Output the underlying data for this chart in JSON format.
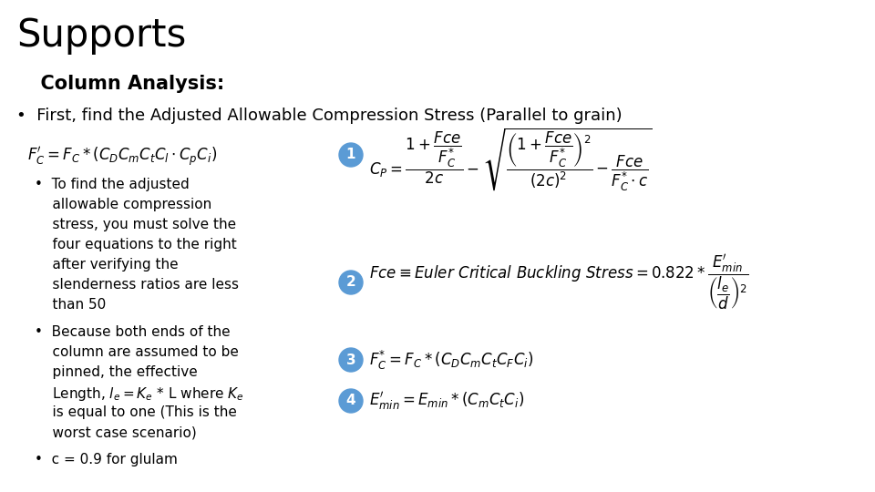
{
  "title": "Supports",
  "subtitle": "  Column Analysis:",
  "bullet1": "•  First, find the Adjusted Allowable Compression Stress (Parallel to grain)",
  "formula_main": "$F_C^{\\prime} = F_C * (C_D C_m C_t C_l \\cdot C_p C_i)$",
  "sub_bullet1_lines": [
    "•  To find the adjusted",
    "    allowable compression",
    "    stress, you must solve the",
    "    four equations to the right",
    "    after verifying the",
    "    slenderness ratios are less",
    "    than 50"
  ],
  "sub_bullet2_lines": [
    "•  Because both ends of the",
    "    column are assumed to be",
    "    pinned, the effective",
    "    Length, $l_e = K_e$ * L where $K_e$",
    "    is equal to one (This is the",
    "    worst case scenario)"
  ],
  "sub_bullet3": "•  c = 0.9 for glulam",
  "circle_color": "#5b9bd5",
  "bg_color": "#ffffff",
  "text_color": "#000000",
  "title_fontsize": 30,
  "subtitle_fontsize": 15,
  "bullet_fontsize": 13,
  "sub_bullet_fontsize": 11,
  "formula_fontsize": 12,
  "eq_fontsize": 12
}
